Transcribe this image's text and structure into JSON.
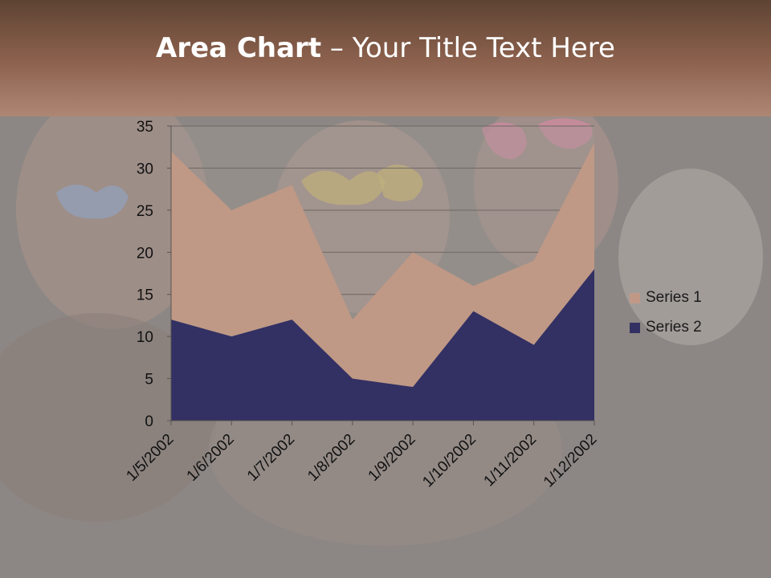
{
  "slide": {
    "title_bold": "Area Chart",
    "title_rest": " – Your Title Text Here"
  },
  "colors": {
    "series1": "#bf9986",
    "series2": "#333063",
    "header": "#8a604c"
  },
  "chart_data": {
    "type": "area",
    "stacked": true,
    "categories": [
      "1/5/2002",
      "1/6/2002",
      "1/7/2002",
      "1/8/2002",
      "1/9/2002",
      "1/10/2002",
      "1/11/2002",
      "1/12/2002"
    ],
    "series": [
      {
        "name": "Series 1",
        "values": [
          20,
          15,
          16,
          7,
          16,
          3,
          10,
          15
        ]
      },
      {
        "name": "Series 2",
        "values": [
          12,
          10,
          12,
          5,
          4,
          13,
          9,
          18
        ]
      }
    ],
    "ylim": [
      0,
      35
    ],
    "yticks": [
      0,
      5,
      10,
      15,
      20,
      25,
      30,
      35
    ],
    "grid": true,
    "legend": "right"
  }
}
